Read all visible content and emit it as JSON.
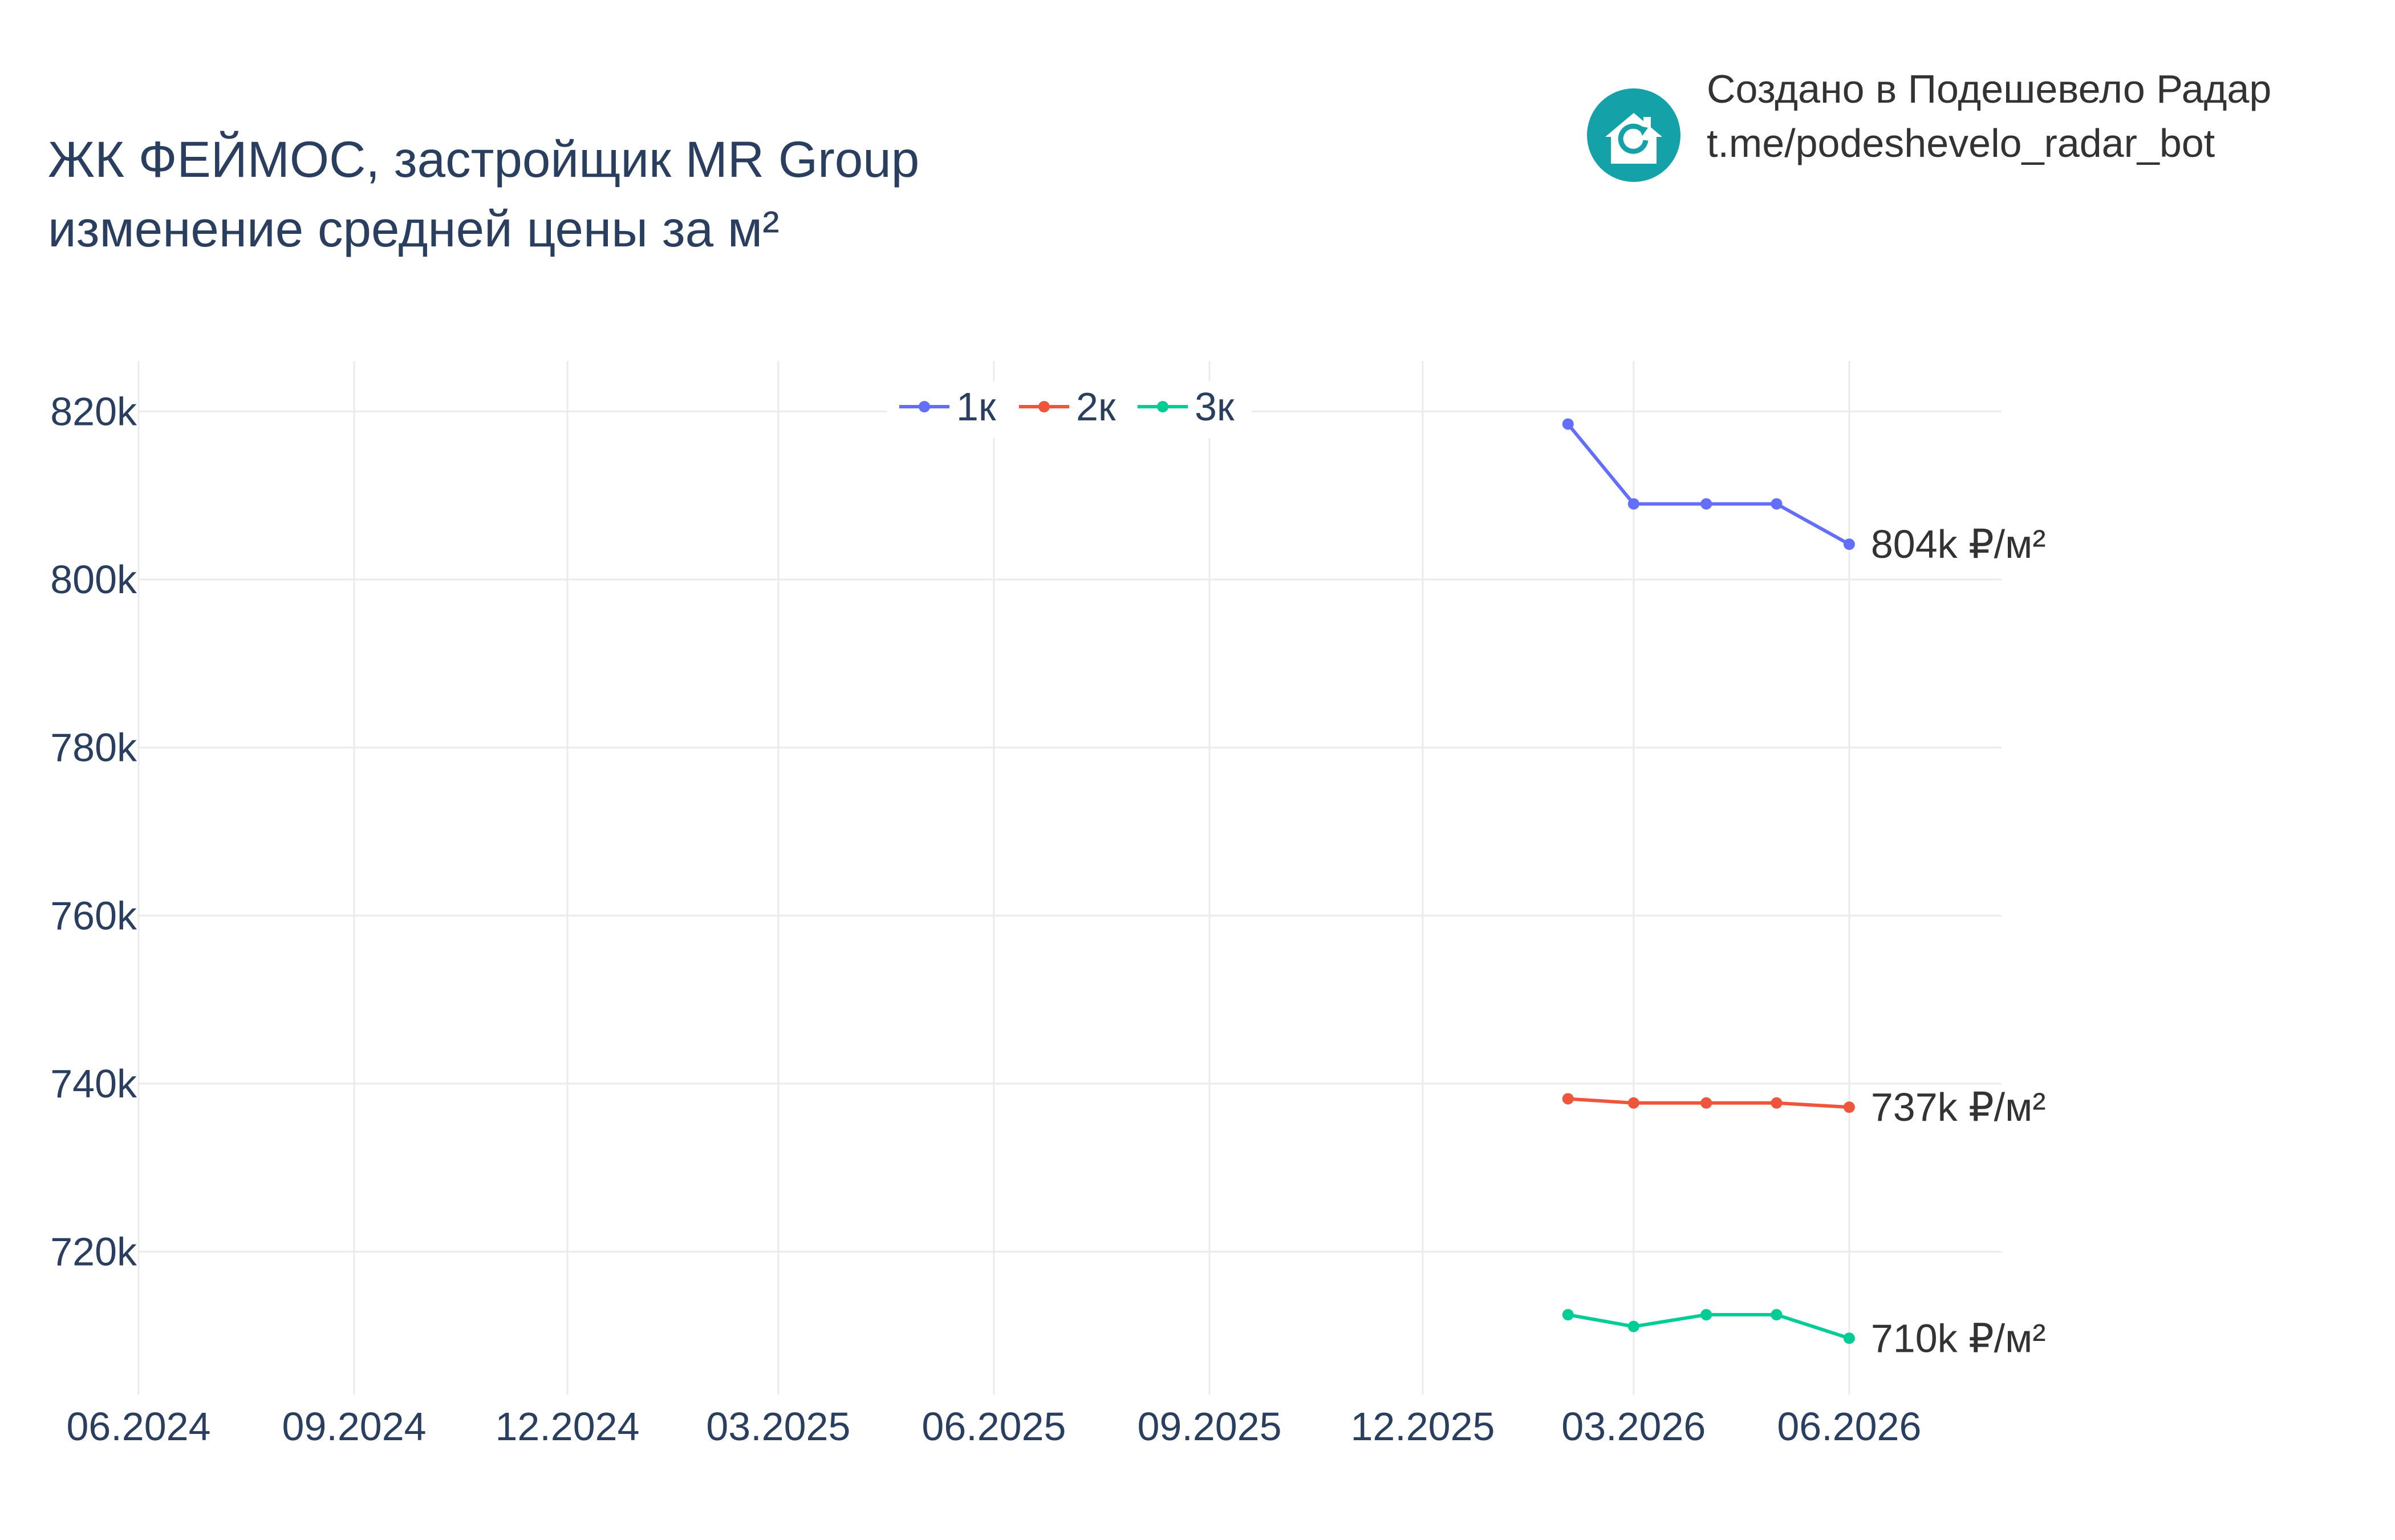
{
  "header": {
    "title_line1": "ЖК ФЕЙМОС, застройщик MR Group",
    "title_line2": "изменение средней цены за м²"
  },
  "branding": {
    "line1": "Создано в Подешевело Радар",
    "line2": "t.me/podeshevelo_radar_bot",
    "logo_icon": "house-refresh-icon",
    "logo_color": "#14a2a8"
  },
  "chart_data": {
    "type": "line",
    "x_ticks": [
      "06.2024",
      "09.2024",
      "12.2024",
      "03.2025",
      "06.2025",
      "09.2025",
      "12.2025",
      "03.2026",
      "06.2026"
    ],
    "x_tick_dates": [
      "2024-06-01",
      "2024-09-01",
      "2024-12-01",
      "2025-03-01",
      "2025-06-01",
      "2025-09-01",
      "2025-12-01",
      "2026-03-01",
      "2026-06-01"
    ],
    "xlim": [
      "2024-06-01",
      "2026-08-05"
    ],
    "y_ticks": [
      720000,
      740000,
      760000,
      780000,
      800000,
      820000
    ],
    "y_tick_labels": [
      "720k",
      "740k",
      "760k",
      "780k",
      "800k",
      "820k"
    ],
    "ylim": [
      703000,
      826000
    ],
    "grid": true,
    "legend_position": "top-center",
    "x": [
      "2026-02-01",
      "2026-03-01",
      "2026-04-01",
      "2026-05-01",
      "2026-06-01"
    ],
    "series": [
      {
        "name": "1к",
        "color": "#636efa",
        "values": [
          818500,
          809000,
          809000,
          809000,
          804200
        ],
        "end_label": "804k ₽/м²"
      },
      {
        "name": "2к",
        "color": "#ef553b",
        "values": [
          738200,
          737700,
          737700,
          737700,
          737200
        ],
        "end_label": "737k ₽/м²"
      },
      {
        "name": "3к",
        "color": "#00cc96",
        "values": [
          712500,
          711100,
          712500,
          712500,
          709700
        ],
        "end_label": "710k ₽/м²"
      }
    ]
  }
}
